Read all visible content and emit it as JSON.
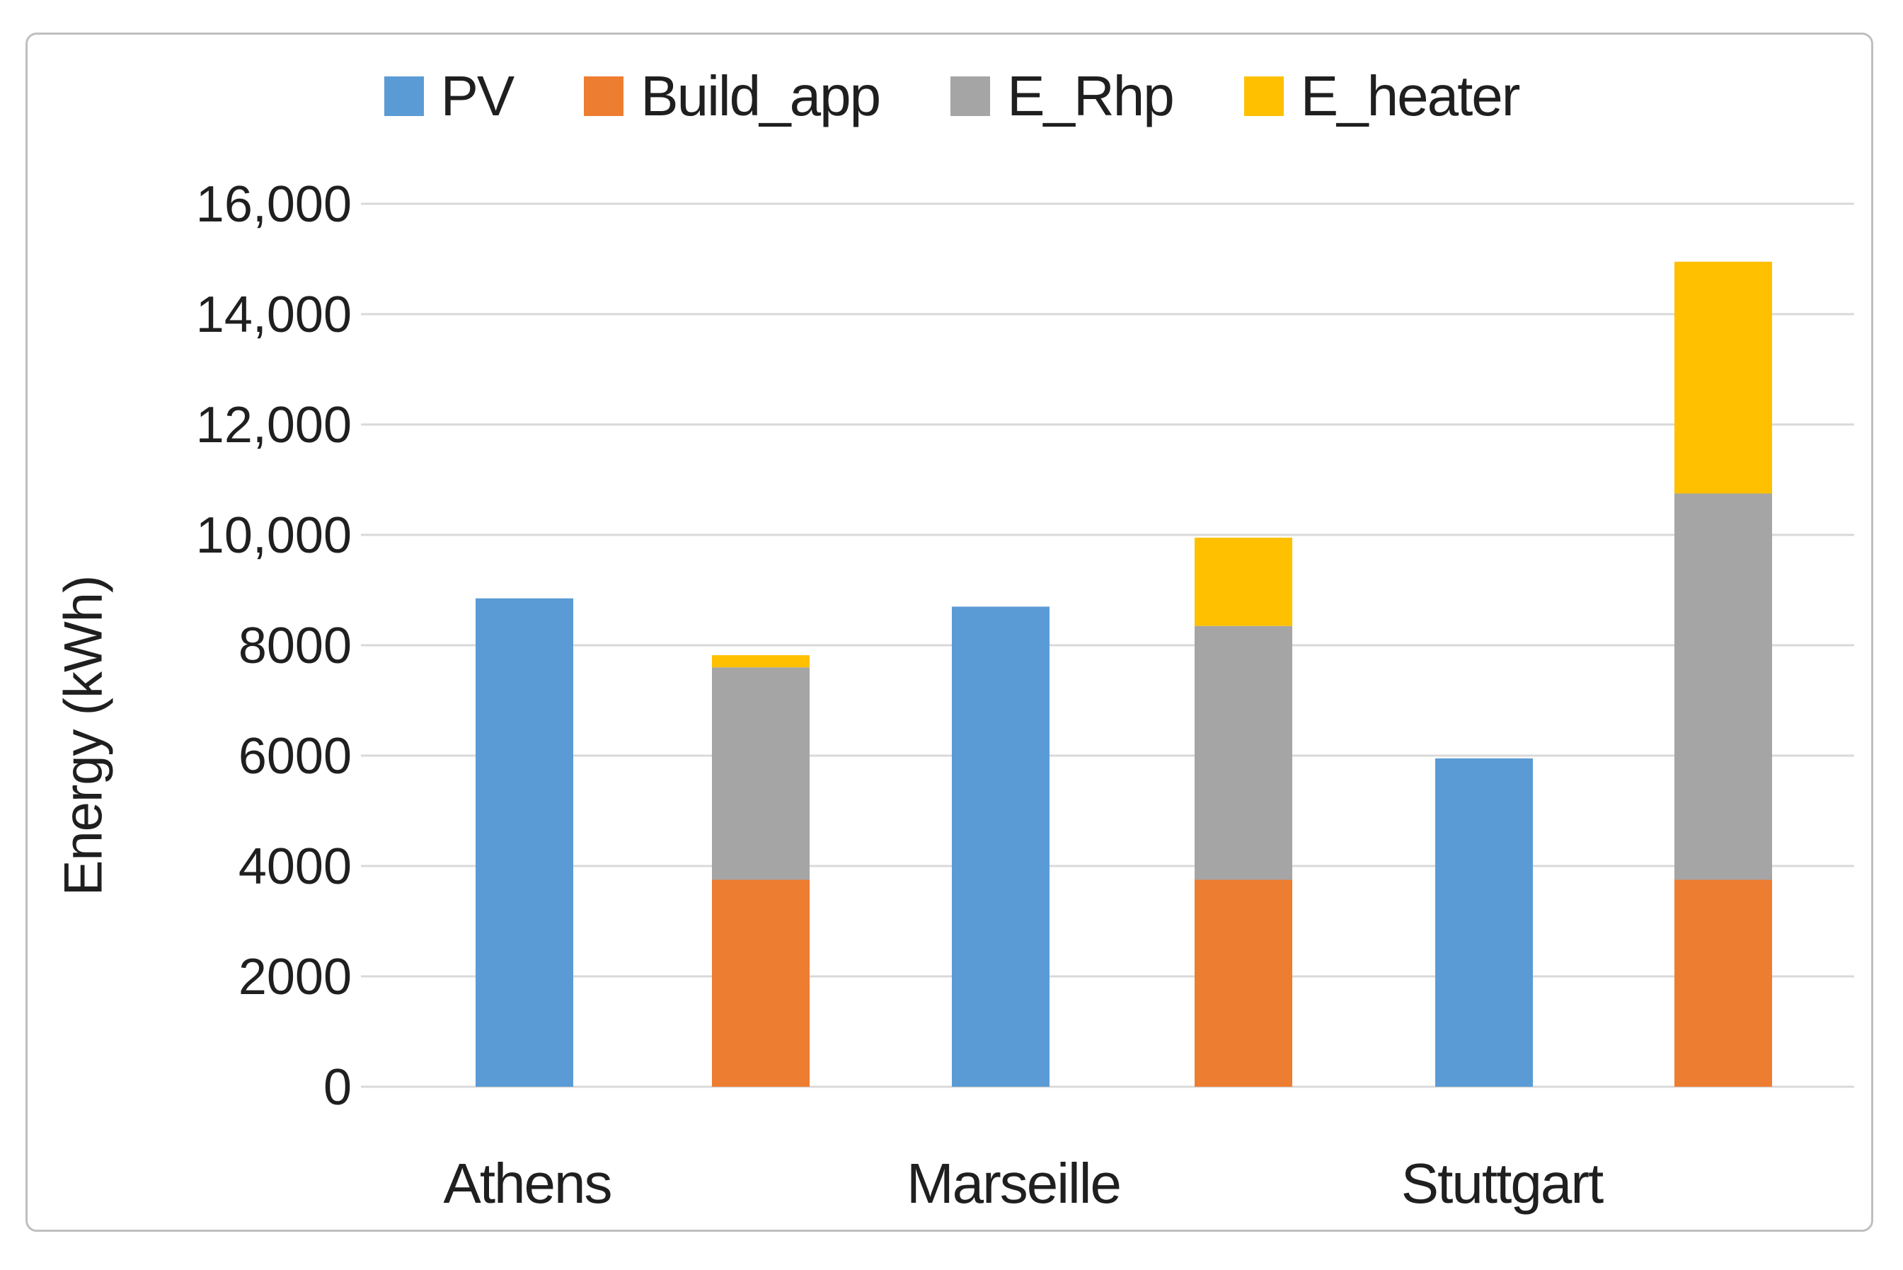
{
  "figure": {
    "background_color": "#FFFFFF",
    "border_color": "#BFBFBF"
  },
  "chart_data": {
    "type": "bar",
    "title": "",
    "xlabel": "",
    "ylabel": "Energy (kWh)",
    "categories": [
      "Athens",
      "Marseille",
      "Stuttgart"
    ],
    "series": [
      {
        "name": "PV",
        "color": "#5B9BD5",
        "render": "separate-column",
        "values": [
          8850,
          8700,
          5950
        ]
      },
      {
        "name": "Build_app",
        "color": "#ED7D31",
        "render": "stacked-column",
        "values": [
          3750,
          3750,
          3750
        ]
      },
      {
        "name": "E_Rhp",
        "color": "#A5A5A5",
        "render": "stacked-column",
        "values": [
          3850,
          4600,
          7000
        ]
      },
      {
        "name": "E_heater",
        "color": "#FFC000",
        "render": "stacked-column",
        "values": [
          220,
          1600,
          4200
        ]
      }
    ],
    "stack_totals": [
      7820,
      9950,
      14950
    ],
    "ylim": [
      0,
      16000
    ],
    "ytick_interval": 2000,
    "ytick_labels": [
      "0",
      "2000",
      "4000",
      "6000",
      "8000",
      "10,000",
      "12,000",
      "14,000",
      "16,000"
    ],
    "grid": true,
    "gridline_color": "#D9D9D9",
    "legend_position": "top-center",
    "text_color": "#1F1F1F"
  }
}
